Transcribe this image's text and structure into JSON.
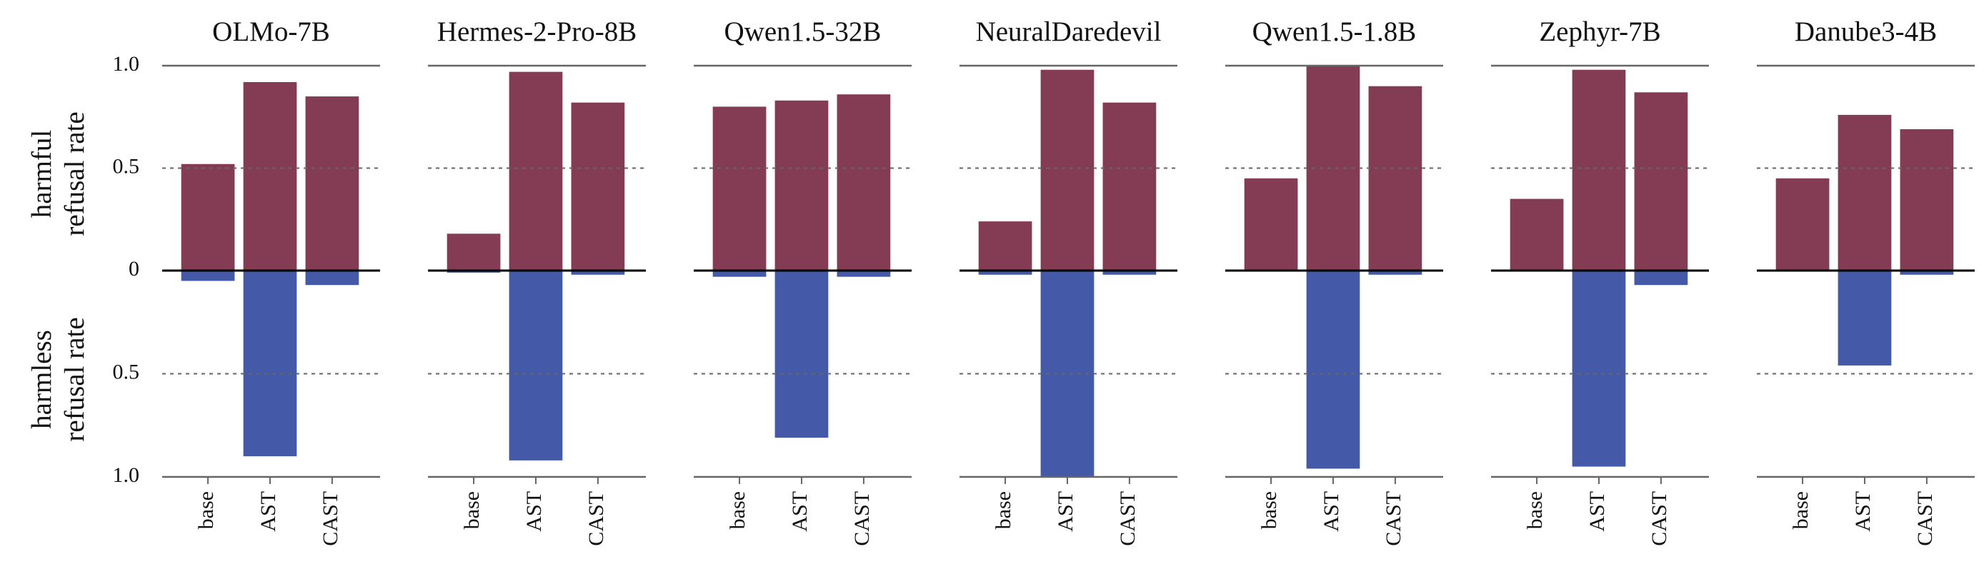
{
  "chart_data": [
    {
      "type": "bar",
      "title": "OLMo-7B",
      "categories": [
        "base",
        "AST",
        "CAST"
      ],
      "ylabel": [
        "harmful",
        "refusal rate"
      ],
      "y2label": [
        "harmless",
        "refusal rate"
      ],
      "series": [
        {
          "color": "#843c54",
          "values": [
            0.52,
            0.92,
            0.85
          ]
        },
        {
          "color": "#445aa8",
          "axis": "y2",
          "values": [
            0.05,
            0.9,
            0.07
          ]
        }
      ],
      "ylim": [
        0,
        1
      ],
      "yticks": [
        {
          "value": 1,
          "label": "1.0"
        },
        0.5,
        0
      ],
      "y2lim": [
        0,
        1
      ],
      "y2ticks": [
        0.5,
        {
          "value": 1,
          "label": "1.0"
        }
      ],
      "tick_labels": true
    },
    {
      "type": "bar",
      "title": "Hermes-2-Pro-8B",
      "categories": [
        "base",
        "AST",
        "CAST"
      ],
      "series": [
        {
          "color": "#843c54",
          "values": [
            0.18,
            0.97,
            0.82
          ]
        },
        {
          "color": "#445aa8",
          "axis": "y2",
          "values": [
            0.01,
            0.92,
            0.02
          ]
        }
      ],
      "ylim": [
        0,
        1
      ],
      "yticks": [
        {
          "value": 1,
          "label": "1.0"
        },
        0.5,
        0
      ],
      "y2lim": [
        0,
        1
      ],
      "y2ticks": [
        0.5,
        {
          "value": 1,
          "label": "1.0"
        }
      ],
      "tick_labels": false
    },
    {
      "type": "bar",
      "title": "Qwen1.5-32B",
      "categories": [
        "base",
        "AST",
        "CAST"
      ],
      "series": [
        {
          "color": "#843c54",
          "values": [
            0.8,
            0.83,
            0.86
          ]
        },
        {
          "color": "#445aa8",
          "axis": "y2",
          "values": [
            0.03,
            0.81,
            0.03
          ]
        }
      ],
      "ylim": [
        0,
        1
      ],
      "yticks": [
        {
          "value": 1,
          "label": "1.0"
        },
        0.5,
        0
      ],
      "y2lim": [
        0,
        1
      ],
      "y2ticks": [
        0.5,
        {
          "value": 1,
          "label": "1.0"
        }
      ],
      "tick_labels": false
    },
    {
      "type": "bar",
      "title": "NeuralDaredevil",
      "categories": [
        "base",
        "AST",
        "CAST"
      ],
      "series": [
        {
          "color": "#843c54",
          "values": [
            0.24,
            0.98,
            0.82
          ]
        },
        {
          "color": "#445aa8",
          "axis": "y2",
          "values": [
            0.02,
            1.0,
            0.02
          ]
        }
      ],
      "ylim": [
        0,
        1
      ],
      "yticks": [
        {
          "value": 1,
          "label": "1.0"
        },
        0.5,
        0
      ],
      "y2lim": [
        0,
        1
      ],
      "y2ticks": [
        0.5,
        {
          "value": 1,
          "label": "1.0"
        }
      ],
      "tick_labels": false
    },
    {
      "type": "bar",
      "title": "Qwen1.5-1.8B",
      "categories": [
        "base",
        "AST",
        "CAST"
      ],
      "series": [
        {
          "color": "#843c54",
          "values": [
            0.45,
            1.0,
            0.9
          ]
        },
        {
          "color": "#445aa8",
          "axis": "y2",
          "values": [
            0.0,
            0.96,
            0.02
          ]
        }
      ],
      "ylim": [
        0,
        1
      ],
      "yticks": [
        {
          "value": 1,
          "label": "1.0"
        },
        0.5,
        0
      ],
      "y2lim": [
        0,
        1
      ],
      "y2ticks": [
        0.5,
        {
          "value": 1,
          "label": "1.0"
        }
      ],
      "tick_labels": false
    },
    {
      "type": "bar",
      "title": "Zephyr-7B",
      "categories": [
        "base",
        "AST",
        "CAST"
      ],
      "series": [
        {
          "color": "#843c54",
          "values": [
            0.35,
            0.98,
            0.87
          ]
        },
        {
          "color": "#445aa8",
          "axis": "y2",
          "values": [
            0.0,
            0.95,
            0.07
          ]
        }
      ],
      "ylim": [
        0,
        1
      ],
      "yticks": [
        {
          "value": 1,
          "label": "1.0"
        },
        0.5,
        0
      ],
      "y2lim": [
        0,
        1
      ],
      "y2ticks": [
        0.5,
        {
          "value": 1,
          "label": "1.0"
        }
      ],
      "tick_labels": false
    },
    {
      "type": "bar",
      "title": "Danube3-4B",
      "categories": [
        "base",
        "AST",
        "CAST"
      ],
      "series": [
        {
          "color": "#843c54",
          "values": [
            0.45,
            0.76,
            0.69
          ]
        },
        {
          "color": "#445aa8",
          "axis": "y2",
          "values": [
            0.0,
            0.46,
            0.02
          ]
        }
      ],
      "ylim": [
        0,
        1
      ],
      "yticks": [
        {
          "value": 1,
          "label": "1.0"
        },
        0.5,
        0
      ],
      "y2lim": [
        0,
        1
      ],
      "y2ticks": [
        0.5,
        {
          "value": 1,
          "label": "1.0"
        }
      ],
      "tick_labels": false
    }
  ]
}
